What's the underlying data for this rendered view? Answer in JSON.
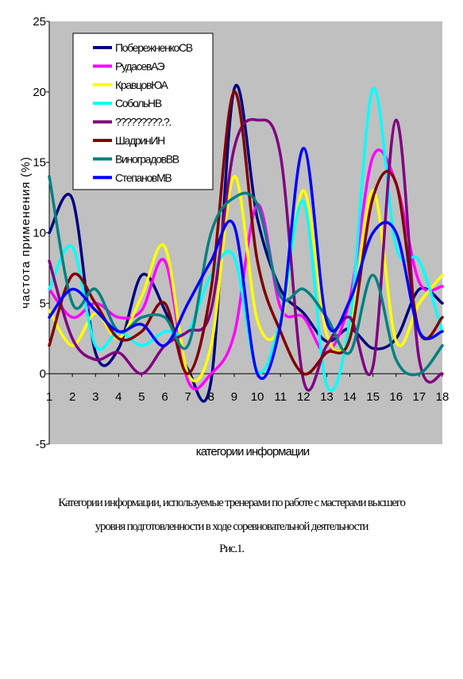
{
  "chart_data": {
    "type": "line",
    "title": "",
    "xlabel": "категории информации",
    "ylabel": "частота применения (%)",
    "x": [
      1,
      2,
      3,
      4,
      5,
      6,
      7,
      8,
      9,
      10,
      11,
      12,
      13,
      14,
      15,
      16,
      17,
      18
    ],
    "xticks": [
      "1",
      "2",
      "3",
      "4",
      "5",
      "6",
      "7",
      "8",
      "9",
      "10",
      "11",
      "12",
      "13",
      "14",
      "15",
      "16",
      "17",
      "18"
    ],
    "ylim": [
      -5,
      25
    ],
    "yticks": [
      -5,
      0,
      5,
      10,
      15,
      20,
      25
    ],
    "grid": false,
    "legend_position": "top-left",
    "series": [
      {
        "name": "ПобережненкоСВ",
        "color": "#000080",
        "values": [
          10,
          12.4,
          1.5,
          1.8,
          7,
          4.5,
          0.3,
          -0.5,
          20.2,
          11,
          6,
          4.3,
          2.3,
          3.2,
          1.8,
          2.5,
          6,
          5
        ]
      },
      {
        "name": "РудасевАЭ",
        "color": "#ff00ff",
        "values": [
          6,
          4,
          5,
          4,
          4.5,
          8,
          -0.5,
          0,
          2.8,
          12,
          4.7,
          4,
          1.5,
          5.3,
          15.4,
          13.5,
          6.5,
          6.2
        ]
      },
      {
        "name": "КравцовЮА",
        "color": "#ffff00",
        "values": [
          4.5,
          2,
          4.3,
          2.5,
          5.5,
          9,
          0,
          2,
          14,
          3.8,
          3.5,
          13,
          2.8,
          2.8,
          13,
          2.3,
          5,
          7
        ]
      },
      {
        "name": "СобольНВ",
        "color": "#00ffff",
        "values": [
          6,
          9,
          2,
          3,
          2,
          3,
          3,
          7,
          8.3,
          0.2,
          3.8,
          12.2,
          -0.8,
          3.8,
          20.2,
          9,
          8,
          3
        ]
      },
      {
        "name": "?????????.?.",
        "color": "#800080",
        "values": [
          8,
          2.5,
          1,
          1.5,
          0,
          2,
          3,
          4.5,
          16,
          18,
          15.5,
          -0.5,
          2,
          4,
          0.5,
          18,
          1,
          0
        ]
      },
      {
        "name": "ШадринИН",
        "color": "#800000",
        "values": [
          2,
          7,
          5,
          2.5,
          3,
          5,
          0,
          6,
          20,
          8,
          3,
          0,
          1.5,
          2.5,
          12.5,
          13.5,
          3,
          4
        ]
      },
      {
        "name": "ВиноградовВВ",
        "color": "#008080",
        "values": [
          14,
          5,
          6,
          3,
          4,
          4,
          2,
          10,
          12.5,
          12,
          5.5,
          6,
          4,
          1.5,
          7,
          1,
          0,
          2
        ]
      },
      {
        "name": "СтепановМВ",
        "color": "#0000ff",
        "values": [
          4,
          6,
          4.5,
          3,
          3.5,
          2,
          5,
          8,
          10.5,
          0,
          3.5,
          16,
          3.7,
          5.2,
          10,
          10,
          3,
          3
        ]
      }
    ]
  },
  "caption": {
    "line1": "Категории информации, используемые тренерами по работе с мастерами высшего",
    "line2": "уровня подготовленности в ходе соревновательной деятельности",
    "figure_label": "Рис.1."
  }
}
